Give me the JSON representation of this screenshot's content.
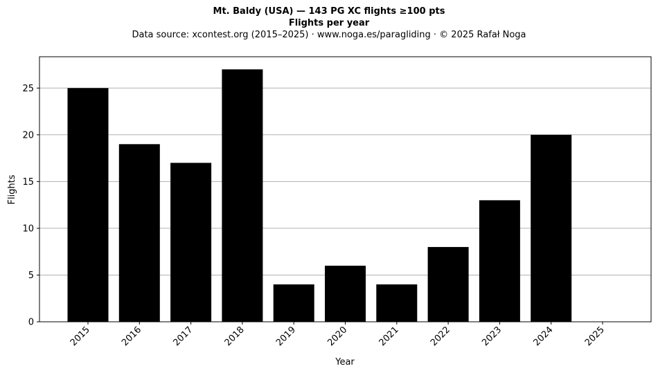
{
  "chart_data": {
    "type": "bar",
    "title": "Mt. Baldy (USA)  —  143 PG XC flights ≥100 pts",
    "subtitle": "Flights per year",
    "source_note": "Data source: xcontest.org (2015–2025)  ·  www.noga.es/paragliding  ·  © 2025 Rafał Noga",
    "xlabel": "Year",
    "ylabel": "Flights",
    "categories": [
      "2015",
      "2016",
      "2017",
      "2018",
      "2019",
      "2020",
      "2021",
      "2022",
      "2023",
      "2024",
      "2025"
    ],
    "values": [
      25,
      19,
      17,
      27,
      4,
      6,
      4,
      8,
      13,
      20,
      0
    ],
    "yticks": [
      "0",
      "5",
      "10",
      "15",
      "20",
      "25"
    ],
    "ylim": [
      0,
      28.35
    ],
    "grid": "horizontal",
    "bar_color": "#000000",
    "grid_color": "#b0b0b0"
  }
}
